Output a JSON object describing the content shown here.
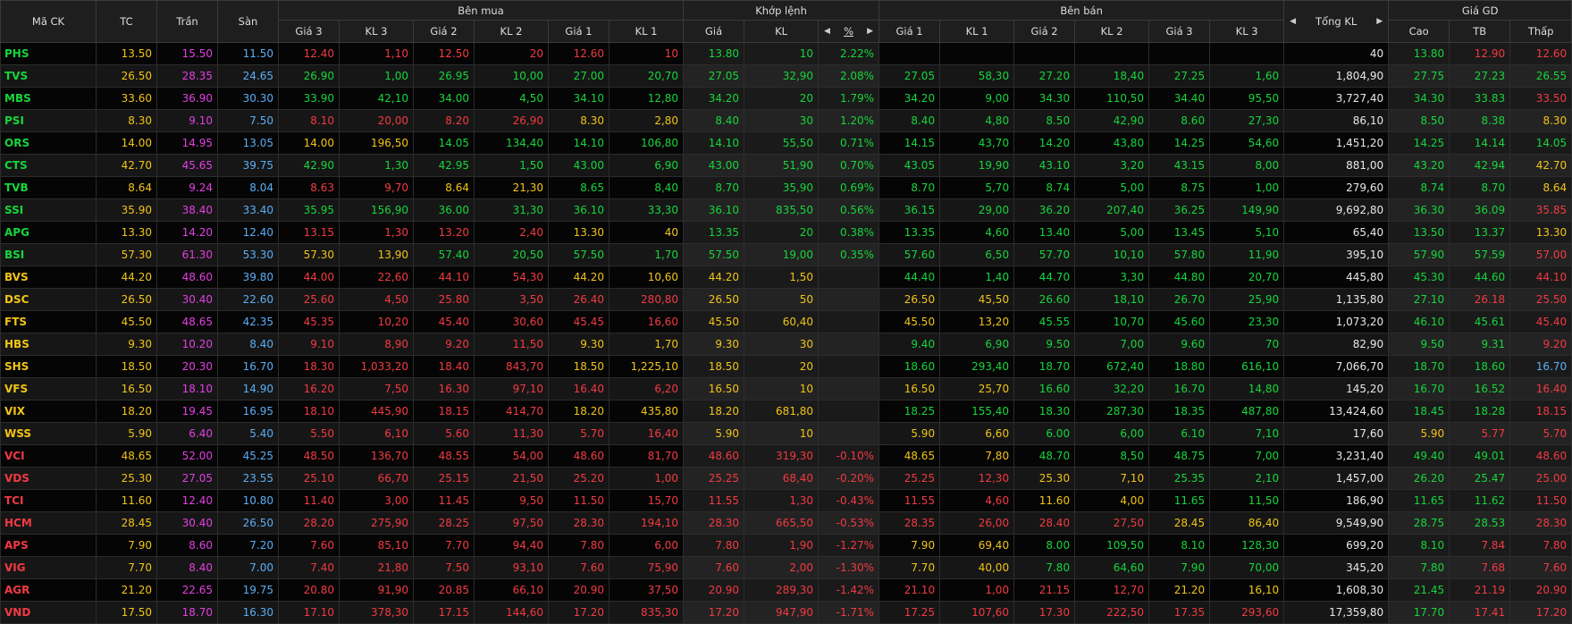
{
  "header": {
    "groups": [
      "Mã CK",
      "TC",
      "Trần",
      "Sàn",
      "Bên mua",
      "Khớp lệnh",
      "Bên bán",
      "Tổng KL",
      "Giá GD"
    ],
    "sub": [
      "Giá 3",
      "KL 3",
      "Giá 2",
      "KL 2",
      "Giá 1",
      "KL 1",
      "Giá",
      "KL",
      "%",
      "Giá 1",
      "KL 1",
      "Giá 2",
      "KL 2",
      "Giá 3",
      "KL 3",
      "Cao",
      "TB",
      "Thấp"
    ],
    "pct_symbol": "%"
  },
  "colors": {
    "green": "#16d63b",
    "red": "#f23a42",
    "ref": "#f2c417",
    "ceil": "#e33fe3",
    "floor": "#5aaef5",
    "white": "#e8e8e8"
  },
  "rows": [
    {
      "sym": "PHS",
      "sc": "g",
      "ref": "13.50",
      "ceil": "15.50",
      "floor": "11.50",
      "bp3": "12.40",
      "bp3c": "r",
      "bv3": "1,10",
      "bp2": "12.50",
      "bp2c": "r",
      "bv2": "20",
      "bp1": "12.60",
      "bp1c": "r",
      "bv1": "10",
      "mp": "13.80",
      "mpc": "g",
      "mv": "10",
      "pct": "2.22%",
      "ap1": "",
      "ap1c": "w",
      "av1": "",
      "ap2": "",
      "ap2c": "w",
      "av2": "",
      "ap3": "",
      "ap3c": "w",
      "av3": "",
      "tv": "40",
      "hi": "13.80",
      "hic": "g",
      "avg": "12.90",
      "avgc": "r",
      "lo": "12.60",
      "loc": "r"
    },
    {
      "sym": "TVS",
      "sc": "g",
      "ref": "26.50",
      "ceil": "28.35",
      "floor": "24.65",
      "bp3": "26.90",
      "bp3c": "g",
      "bv3": "1,00",
      "bp2": "26.95",
      "bp2c": "g",
      "bv2": "10,00",
      "bp1": "27.00",
      "bp1c": "g",
      "bv1": "20,70",
      "mp": "27.05",
      "mpc": "g",
      "mv": "32,90",
      "pct": "2.08%",
      "ap1": "27.05",
      "ap1c": "g",
      "av1": "58,30",
      "ap2": "27.20",
      "ap2c": "g",
      "av2": "18,40",
      "ap3": "27.25",
      "ap3c": "g",
      "av3": "1,60",
      "tv": "1,804,90",
      "hi": "27.75",
      "hic": "g",
      "avg": "27.23",
      "avgc": "g",
      "lo": "26.55",
      "loc": "g"
    },
    {
      "sym": "MBS",
      "sc": "g",
      "ref": "33.60",
      "ceil": "36.90",
      "floor": "30.30",
      "bp3": "33.90",
      "bp3c": "g",
      "bv3": "42,10",
      "bp2": "34.00",
      "bp2c": "g",
      "bv2": "4,50",
      "bp1": "34.10",
      "bp1c": "g",
      "bv1": "12,80",
      "mp": "34.20",
      "mpc": "g",
      "mv": "20",
      "pct": "1.79%",
      "ap1": "34.20",
      "ap1c": "g",
      "av1": "9,00",
      "ap2": "34.30",
      "ap2c": "g",
      "av2": "110,50",
      "ap3": "34.40",
      "ap3c": "g",
      "av3": "95,50",
      "tv": "3,727,40",
      "hi": "34.30",
      "hic": "g",
      "avg": "33.83",
      "avgc": "g",
      "lo": "33.50",
      "loc": "r"
    },
    {
      "sym": "PSI",
      "sc": "g",
      "ref": "8.30",
      "ceil": "9.10",
      "floor": "7.50",
      "bp3": "8.10",
      "bp3c": "r",
      "bv3": "20,00",
      "bp2": "8.20",
      "bp2c": "r",
      "bv2": "26,90",
      "bp1": "8.30",
      "bp1c": "y",
      "bv1": "2,80",
      "mp": "8.40",
      "mpc": "g",
      "mv": "30",
      "pct": "1.20%",
      "ap1": "8.40",
      "ap1c": "g",
      "av1": "4,80",
      "ap2": "8.50",
      "ap2c": "g",
      "av2": "42,90",
      "ap3": "8.60",
      "ap3c": "g",
      "av3": "27,30",
      "tv": "86,10",
      "hi": "8.50",
      "hic": "g",
      "avg": "8.38",
      "avgc": "g",
      "lo": "8.30",
      "loc": "y"
    },
    {
      "sym": "ORS",
      "sc": "g",
      "ref": "14.00",
      "ceil": "14.95",
      "floor": "13.05",
      "bp3": "14.00",
      "bp3c": "y",
      "bv3": "196,50",
      "bp2": "14.05",
      "bp2c": "g",
      "bv2": "134,40",
      "bp1": "14.10",
      "bp1c": "g",
      "bv1": "106,80",
      "mp": "14.10",
      "mpc": "g",
      "mv": "55,50",
      "pct": "0.71%",
      "ap1": "14.15",
      "ap1c": "g",
      "av1": "43,70",
      "ap2": "14.20",
      "ap2c": "g",
      "av2": "43,80",
      "ap3": "14.25",
      "ap3c": "g",
      "av3": "54,60",
      "tv": "1,451,20",
      "hi": "14.25",
      "hic": "g",
      "avg": "14.14",
      "avgc": "g",
      "lo": "14.05",
      "loc": "g"
    },
    {
      "sym": "CTS",
      "sc": "g",
      "ref": "42.70",
      "ceil": "45.65",
      "floor": "39.75",
      "bp3": "42.90",
      "bp3c": "g",
      "bv3": "1,30",
      "bp2": "42.95",
      "bp2c": "g",
      "bv2": "1,50",
      "bp1": "43.00",
      "bp1c": "g",
      "bv1": "6,90",
      "mp": "43.00",
      "mpc": "g",
      "mv": "51,90",
      "pct": "0.70%",
      "ap1": "43.05",
      "ap1c": "g",
      "av1": "19,90",
      "ap2": "43.10",
      "ap2c": "g",
      "av2": "3,20",
      "ap3": "43.15",
      "ap3c": "g",
      "av3": "8,00",
      "tv": "881,00",
      "hi": "43.20",
      "hic": "g",
      "avg": "42.94",
      "avgc": "g",
      "lo": "42.70",
      "loc": "y"
    },
    {
      "sym": "TVB",
      "sc": "g",
      "ref": "8.64",
      "ceil": "9.24",
      "floor": "8.04",
      "bp3": "8.63",
      "bp3c": "r",
      "bv3": "9,70",
      "bp2": "8.64",
      "bp2c": "y",
      "bv2": "21,30",
      "bp1": "8.65",
      "bp1c": "g",
      "bv1": "8,40",
      "mp": "8.70",
      "mpc": "g",
      "mv": "35,90",
      "pct": "0.69%",
      "ap1": "8.70",
      "ap1c": "g",
      "av1": "5,70",
      "ap2": "8.74",
      "ap2c": "g",
      "av2": "5,00",
      "ap3": "8.75",
      "ap3c": "g",
      "av3": "1,00",
      "tv": "279,60",
      "hi": "8.74",
      "hic": "g",
      "avg": "8.70",
      "avgc": "g",
      "lo": "8.64",
      "loc": "y"
    },
    {
      "sym": "SSI",
      "sc": "g",
      "ref": "35.90",
      "ceil": "38.40",
      "floor": "33.40",
      "bp3": "35.95",
      "bp3c": "g",
      "bv3": "156,90",
      "bp2": "36.00",
      "bp2c": "g",
      "bv2": "31,30",
      "bp1": "36.10",
      "bp1c": "g",
      "bv1": "33,30",
      "mp": "36.10",
      "mpc": "g",
      "mv": "835,50",
      "pct": "0.56%",
      "ap1": "36.15",
      "ap1c": "g",
      "av1": "29,00",
      "ap2": "36.20",
      "ap2c": "g",
      "av2": "207,40",
      "ap3": "36.25",
      "ap3c": "g",
      "av3": "149,90",
      "tv": "9,692,80",
      "hi": "36.30",
      "hic": "g",
      "avg": "36.09",
      "avgc": "g",
      "lo": "35.85",
      "loc": "r"
    },
    {
      "sym": "APG",
      "sc": "g",
      "ref": "13.30",
      "ceil": "14.20",
      "floor": "12.40",
      "bp3": "13.15",
      "bp3c": "r",
      "bv3": "1,30",
      "bp2": "13.20",
      "bp2c": "r",
      "bv2": "2,40",
      "bp1": "13.30",
      "bp1c": "y",
      "bv1": "40",
      "mp": "13.35",
      "mpc": "g",
      "mv": "20",
      "pct": "0.38%",
      "ap1": "13.35",
      "ap1c": "g",
      "av1": "4,60",
      "ap2": "13.40",
      "ap2c": "g",
      "av2": "5,00",
      "ap3": "13.45",
      "ap3c": "g",
      "av3": "5,10",
      "tv": "65,40",
      "hi": "13.50",
      "hic": "g",
      "avg": "13.37",
      "avgc": "g",
      "lo": "13.30",
      "loc": "y"
    },
    {
      "sym": "BSI",
      "sc": "g",
      "ref": "57.30",
      "ceil": "61.30",
      "floor": "53.30",
      "bp3": "57.30",
      "bp3c": "y",
      "bv3": "13,90",
      "bp2": "57.40",
      "bp2c": "g",
      "bv2": "20,50",
      "bp1": "57.50",
      "bp1c": "g",
      "bv1": "1,70",
      "mp": "57.50",
      "mpc": "g",
      "mv": "19,00",
      "pct": "0.35%",
      "ap1": "57.60",
      "ap1c": "g",
      "av1": "6,50",
      "ap2": "57.70",
      "ap2c": "g",
      "av2": "10,10",
      "ap3": "57.80",
      "ap3c": "g",
      "av3": "11,90",
      "tv": "395,10",
      "hi": "57.90",
      "hic": "g",
      "avg": "57.59",
      "avgc": "g",
      "lo": "57.00",
      "loc": "r"
    },
    {
      "sym": "BVS",
      "sc": "y",
      "ref": "44.20",
      "ceil": "48.60",
      "floor": "39.80",
      "bp3": "44.00",
      "bp3c": "r",
      "bv3": "22,60",
      "bp2": "44.10",
      "bp2c": "r",
      "bv2": "54,30",
      "bp1": "44.20",
      "bp1c": "y",
      "bv1": "10,60",
      "mp": "44.20",
      "mpc": "y",
      "mv": "1,50",
      "pct": "",
      "ap1": "44.40",
      "ap1c": "g",
      "av1": "1,40",
      "ap2": "44.70",
      "ap2c": "g",
      "av2": "3,30",
      "ap3": "44.80",
      "ap3c": "g",
      "av3": "20,70",
      "tv": "445,80",
      "hi": "45.30",
      "hic": "g",
      "avg": "44.60",
      "avgc": "g",
      "lo": "44.10",
      "loc": "r"
    },
    {
      "sym": "DSC",
      "sc": "y",
      "ref": "26.50",
      "ceil": "30.40",
      "floor": "22.60",
      "bp3": "25.60",
      "bp3c": "r",
      "bv3": "4,50",
      "bp2": "25.80",
      "bp2c": "r",
      "bv2": "3,50",
      "bp1": "26.40",
      "bp1c": "r",
      "bv1": "280,80",
      "mp": "26.50",
      "mpc": "y",
      "mv": "50",
      "pct": "",
      "ap1": "26.50",
      "ap1c": "y",
      "av1": "45,50",
      "ap2": "26.60",
      "ap2c": "g",
      "av2": "18,10",
      "ap3": "26.70",
      "ap3c": "g",
      "av3": "25,90",
      "tv": "1,135,80",
      "hi": "27.10",
      "hic": "g",
      "avg": "26.18",
      "avgc": "r",
      "lo": "25.50",
      "loc": "r"
    },
    {
      "sym": "FTS",
      "sc": "y",
      "ref": "45.50",
      "ceil": "48.65",
      "floor": "42.35",
      "bp3": "45.35",
      "bp3c": "r",
      "bv3": "10,20",
      "bp2": "45.40",
      "bp2c": "r",
      "bv2": "30,60",
      "bp1": "45.45",
      "bp1c": "r",
      "bv1": "16,60",
      "mp": "45.50",
      "mpc": "y",
      "mv": "60,40",
      "pct": "",
      "ap1": "45.50",
      "ap1c": "y",
      "av1": "13,20",
      "ap2": "45.55",
      "ap2c": "g",
      "av2": "10,70",
      "ap3": "45.60",
      "ap3c": "g",
      "av3": "23,30",
      "tv": "1,073,20",
      "hi": "46.10",
      "hic": "g",
      "avg": "45.61",
      "avgc": "g",
      "lo": "45.40",
      "loc": "r"
    },
    {
      "sym": "HBS",
      "sc": "y",
      "ref": "9.30",
      "ceil": "10.20",
      "floor": "8.40",
      "bp3": "9.10",
      "bp3c": "r",
      "bv3": "8,90",
      "bp2": "9.20",
      "bp2c": "r",
      "bv2": "11,50",
      "bp1": "9.30",
      "bp1c": "y",
      "bv1": "1,70",
      "mp": "9.30",
      "mpc": "y",
      "mv": "30",
      "pct": "",
      "ap1": "9.40",
      "ap1c": "g",
      "av1": "6,90",
      "ap2": "9.50",
      "ap2c": "g",
      "av2": "7,00",
      "ap3": "9.60",
      "ap3c": "g",
      "av3": "70",
      "tv": "82,90",
      "hi": "9.50",
      "hic": "g",
      "avg": "9.31",
      "avgc": "g",
      "lo": "9.20",
      "loc": "r"
    },
    {
      "sym": "SHS",
      "sc": "y",
      "ref": "18.50",
      "ceil": "20.30",
      "floor": "16.70",
      "bp3": "18.30",
      "bp3c": "r",
      "bv3": "1,033,20",
      "bp2": "18.40",
      "bp2c": "r",
      "bv2": "843,70",
      "bp1": "18.50",
      "bp1c": "y",
      "bv1": "1,225,10",
      "mp": "18.50",
      "mpc": "y",
      "mv": "20",
      "pct": "",
      "ap1": "18.60",
      "ap1c": "g",
      "av1": "293,40",
      "ap2": "18.70",
      "ap2c": "g",
      "av2": "672,40",
      "ap3": "18.80",
      "ap3c": "g",
      "av3": "616,10",
      "tv": "7,066,70",
      "hi": "18.70",
      "hic": "g",
      "avg": "18.60",
      "avgc": "g",
      "lo": "16.70",
      "loc": "b"
    },
    {
      "sym": "VFS",
      "sc": "y",
      "ref": "16.50",
      "ceil": "18.10",
      "floor": "14.90",
      "bp3": "16.20",
      "bp3c": "r",
      "bv3": "7,50",
      "bp2": "16.30",
      "bp2c": "r",
      "bv2": "97,10",
      "bp1": "16.40",
      "bp1c": "r",
      "bv1": "6,20",
      "mp": "16.50",
      "mpc": "y",
      "mv": "10",
      "pct": "",
      "ap1": "16.50",
      "ap1c": "y",
      "av1": "25,70",
      "ap2": "16.60",
      "ap2c": "g",
      "av2": "32,20",
      "ap3": "16.70",
      "ap3c": "g",
      "av3": "14,80",
      "tv": "145,20",
      "hi": "16.70",
      "hic": "g",
      "avg": "16.52",
      "avgc": "g",
      "lo": "16.40",
      "loc": "r"
    },
    {
      "sym": "VIX",
      "sc": "y",
      "ref": "18.20",
      "ceil": "19.45",
      "floor": "16.95",
      "bp3": "18.10",
      "bp3c": "r",
      "bv3": "445,90",
      "bp2": "18.15",
      "bp2c": "r",
      "bv2": "414,70",
      "bp1": "18.20",
      "bp1c": "y",
      "bv1": "435,80",
      "mp": "18.20",
      "mpc": "y",
      "mv": "681,80",
      "pct": "",
      "ap1": "18.25",
      "ap1c": "g",
      "av1": "155,40",
      "ap2": "18.30",
      "ap2c": "g",
      "av2": "287,30",
      "ap3": "18.35",
      "ap3c": "g",
      "av3": "487,80",
      "tv": "13,424,60",
      "hi": "18.45",
      "hic": "g",
      "avg": "18.28",
      "avgc": "g",
      "lo": "18.15",
      "loc": "r"
    },
    {
      "sym": "WSS",
      "sc": "y",
      "ref": "5.90",
      "ceil": "6.40",
      "floor": "5.40",
      "bp3": "5.50",
      "bp3c": "r",
      "bv3": "6,10",
      "bp2": "5.60",
      "bp2c": "r",
      "bv2": "11,30",
      "bp1": "5.70",
      "bp1c": "r",
      "bv1": "16,40",
      "mp": "5.90",
      "mpc": "y",
      "mv": "10",
      "pct": "",
      "ap1": "5.90",
      "ap1c": "y",
      "av1": "6,60",
      "ap2": "6.00",
      "ap2c": "g",
      "av2": "6,00",
      "ap3": "6.10",
      "ap3c": "g",
      "av3": "7,10",
      "tv": "17,60",
      "hi": "5.90",
      "hic": "y",
      "avg": "5.77",
      "avgc": "r",
      "lo": "5.70",
      "loc": "r"
    },
    {
      "sym": "VCI",
      "sc": "r",
      "ref": "48.65",
      "ceil": "52.00",
      "floor": "45.25",
      "bp3": "48.50",
      "bp3c": "r",
      "bv3": "136,70",
      "bp2": "48.55",
      "bp2c": "r",
      "bv2": "54,00",
      "bp1": "48.60",
      "bp1c": "r",
      "bv1": "81,70",
      "mp": "48.60",
      "mpc": "r",
      "mv": "319,30",
      "pct": "-0.10%",
      "ap1": "48.65",
      "ap1c": "y",
      "av1": "7,80",
      "ap2": "48.70",
      "ap2c": "g",
      "av2": "8,50",
      "ap3": "48.75",
      "ap3c": "g",
      "av3": "7,00",
      "tv": "3,231,40",
      "hi": "49.40",
      "hic": "g",
      "avg": "49.01",
      "avgc": "g",
      "lo": "48.60",
      "loc": "r"
    },
    {
      "sym": "VDS",
      "sc": "r",
      "ref": "25.30",
      "ceil": "27.05",
      "floor": "23.55",
      "bp3": "25.10",
      "bp3c": "r",
      "bv3": "66,70",
      "bp2": "25.15",
      "bp2c": "r",
      "bv2": "21,50",
      "bp1": "25.20",
      "bp1c": "r",
      "bv1": "1,00",
      "mp": "25.25",
      "mpc": "r",
      "mv": "68,40",
      "pct": "-0.20%",
      "ap1": "25.25",
      "ap1c": "r",
      "av1": "12,30",
      "ap2": "25.30",
      "ap2c": "y",
      "av2": "7,10",
      "ap3": "25.35",
      "ap3c": "g",
      "av3": "2,10",
      "tv": "1,457,00",
      "hi": "26.20",
      "hic": "g",
      "avg": "25.47",
      "avgc": "g",
      "lo": "25.00",
      "loc": "r"
    },
    {
      "sym": "TCI",
      "sc": "r",
      "ref": "11.60",
      "ceil": "12.40",
      "floor": "10.80",
      "bp3": "11.40",
      "bp3c": "r",
      "bv3": "3,00",
      "bp2": "11.45",
      "bp2c": "r",
      "bv2": "9,50",
      "bp1": "11.50",
      "bp1c": "r",
      "bv1": "15,70",
      "mp": "11.55",
      "mpc": "r",
      "mv": "1,30",
      "pct": "-0.43%",
      "ap1": "11.55",
      "ap1c": "r",
      "av1": "4,60",
      "ap2": "11.60",
      "ap2c": "y",
      "av2": "4,00",
      "ap3": "11.65",
      "ap3c": "g",
      "av3": "11,50",
      "tv": "186,90",
      "hi": "11.65",
      "hic": "g",
      "avg": "11.62",
      "avgc": "g",
      "lo": "11.50",
      "loc": "r"
    },
    {
      "sym": "HCM",
      "sc": "r",
      "ref": "28.45",
      "ceil": "30.40",
      "floor": "26.50",
      "bp3": "28.20",
      "bp3c": "r",
      "bv3": "275,90",
      "bp2": "28.25",
      "bp2c": "r",
      "bv2": "97,50",
      "bp1": "28.30",
      "bp1c": "r",
      "bv1": "194,10",
      "mp": "28.30",
      "mpc": "r",
      "mv": "665,50",
      "pct": "-0.53%",
      "ap1": "28.35",
      "ap1c": "r",
      "av1": "26,00",
      "ap2": "28.40",
      "ap2c": "r",
      "av2": "27,50",
      "ap3": "28.45",
      "ap3c": "y",
      "av3": "86,40",
      "tv": "9,549,90",
      "hi": "28.75",
      "hic": "g",
      "avg": "28.53",
      "avgc": "g",
      "lo": "28.30",
      "loc": "r"
    },
    {
      "sym": "APS",
      "sc": "r",
      "ref": "7.90",
      "ceil": "8.60",
      "floor": "7.20",
      "bp3": "7.60",
      "bp3c": "r",
      "bv3": "85,10",
      "bp2": "7.70",
      "bp2c": "r",
      "bv2": "94,40",
      "bp1": "7.80",
      "bp1c": "r",
      "bv1": "6,00",
      "mp": "7.80",
      "mpc": "r",
      "mv": "1,90",
      "pct": "-1.27%",
      "ap1": "7.90",
      "ap1c": "y",
      "av1": "69,40",
      "ap2": "8.00",
      "ap2c": "g",
      "av2": "109,50",
      "ap3": "8.10",
      "ap3c": "g",
      "av3": "128,30",
      "tv": "699,20",
      "hi": "8.10",
      "hic": "g",
      "avg": "7.84",
      "avgc": "r",
      "lo": "7.80",
      "loc": "r"
    },
    {
      "sym": "VIG",
      "sc": "r",
      "ref": "7.70",
      "ceil": "8.40",
      "floor": "7.00",
      "bp3": "7.40",
      "bp3c": "r",
      "bv3": "21,80",
      "bp2": "7.50",
      "bp2c": "r",
      "bv2": "93,10",
      "bp1": "7.60",
      "bp1c": "r",
      "bv1": "75,90",
      "mp": "7.60",
      "mpc": "r",
      "mv": "2,00",
      "pct": "-1.30%",
      "ap1": "7.70",
      "ap1c": "y",
      "av1": "40,00",
      "ap2": "7.80",
      "ap2c": "g",
      "av2": "64,60",
      "ap3": "7.90",
      "ap3c": "g",
      "av3": "70,00",
      "tv": "345,20",
      "hi": "7.80",
      "hic": "g",
      "avg": "7.68",
      "avgc": "r",
      "lo": "7.60",
      "loc": "r"
    },
    {
      "sym": "AGR",
      "sc": "r",
      "ref": "21.20",
      "ceil": "22.65",
      "floor": "19.75",
      "bp3": "20.80",
      "bp3c": "r",
      "bv3": "91,90",
      "bp2": "20.85",
      "bp2c": "r",
      "bv2": "66,10",
      "bp1": "20.90",
      "bp1c": "r",
      "bv1": "37,50",
      "mp": "20.90",
      "mpc": "r",
      "mv": "289,30",
      "pct": "-1.42%",
      "ap1": "21.10",
      "ap1c": "r",
      "av1": "1,00",
      "ap2": "21.15",
      "ap2c": "r",
      "av2": "12,70",
      "ap3": "21.20",
      "ap3c": "y",
      "av3": "16,10",
      "tv": "1,608,30",
      "hi": "21.45",
      "hic": "g",
      "avg": "21.19",
      "avgc": "r",
      "lo": "20.90",
      "loc": "r"
    },
    {
      "sym": "VND",
      "sc": "r",
      "ref": "17.50",
      "ceil": "18.70",
      "floor": "16.30",
      "bp3": "17.10",
      "bp3c": "r",
      "bv3": "378,30",
      "bp2": "17.15",
      "bp2c": "r",
      "bv2": "144,60",
      "bp1": "17.20",
      "bp1c": "r",
      "bv1": "835,30",
      "mp": "17.20",
      "mpc": "r",
      "mv": "947,90",
      "pct": "-1.71%",
      "ap1": "17.25",
      "ap1c": "r",
      "av1": "107,60",
      "ap2": "17.30",
      "ap2c": "r",
      "av2": "222,50",
      "ap3": "17.35",
      "ap3c": "r",
      "av3": "293,60",
      "tv": "17,359,80",
      "hi": "17.70",
      "hic": "g",
      "avg": "17.41",
      "avgc": "r",
      "lo": "17.20",
      "loc": "r"
    }
  ]
}
